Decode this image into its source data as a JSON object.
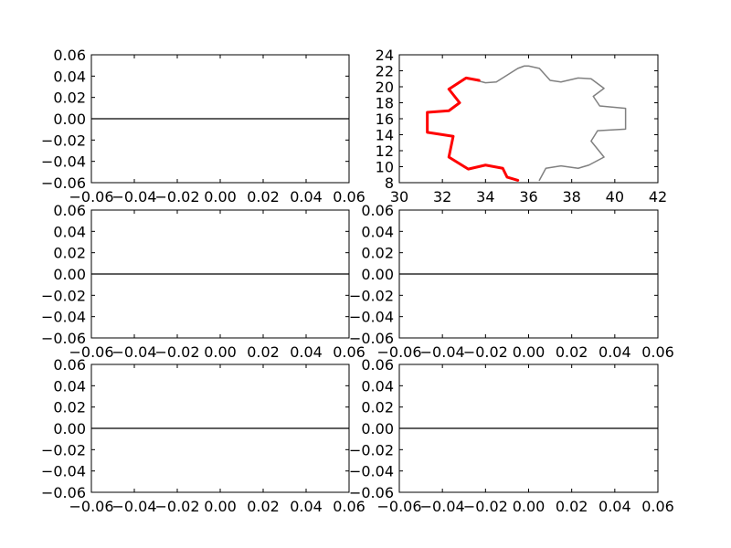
{
  "chart_data": [
    {
      "type": "line",
      "xlim": [
        -0.06,
        0.06
      ],
      "ylim": [
        -0.06,
        0.06
      ],
      "xticks": [
        "−0.06",
        "−0.04",
        "−0.02",
        "0.00",
        "0.02",
        "0.04",
        "0.06"
      ],
      "yticks": [
        "0.06",
        "0.04",
        "0.02",
        "0.00",
        "−0.02",
        "−0.04",
        "−0.06"
      ],
      "series": [
        {
          "color": "#000000",
          "x": [
            -0.06,
            0.06
          ],
          "y": [
            0,
            0
          ]
        }
      ],
      "grid": false
    },
    {
      "type": "line",
      "xlim": [
        30,
        42
      ],
      "ylim": [
        8,
        24
      ],
      "xticks": [
        "30",
        "32",
        "34",
        "36",
        "38",
        "40",
        "42"
      ],
      "yticks": [
        "24",
        "22",
        "20",
        "18",
        "16",
        "14",
        "12",
        "10",
        "8"
      ],
      "grid": false,
      "series": [
        {
          "color": "#808080",
          "x": [
            36.5,
            36.8,
            37.5,
            38.3,
            38.8,
            39.5,
            38.9,
            39.2,
            40.5,
            40.5,
            39.3,
            39.0,
            39.5,
            38.9,
            38.3,
            37.5,
            37.0,
            36.5,
            36.0,
            35.8,
            35.5,
            34.5,
            34.0,
            33.3
          ],
          "y": [
            8.3,
            9.8,
            10.1,
            9.8,
            10.2,
            11.2,
            13.2,
            14.5,
            14.7,
            17.3,
            17.6,
            18.8,
            19.8,
            21.0,
            21.1,
            20.6,
            20.8,
            22.3,
            22.6,
            22.6,
            22.3,
            20.6,
            20.5,
            21.0
          ]
        },
        {
          "color": "#ff0000",
          "x": [
            33.7,
            33.1,
            32.3,
            32.8,
            32.3,
            31.3,
            31.3,
            32.5,
            32.3,
            33.2,
            34.0,
            34.8,
            35.0,
            35.5
          ],
          "y": [
            20.8,
            21.1,
            19.7,
            18.0,
            17.0,
            16.8,
            14.3,
            13.8,
            11.2,
            9.7,
            10.2,
            9.8,
            8.7,
            8.3
          ]
        }
      ]
    },
    {
      "type": "line",
      "xlim": [
        -0.06,
        0.06
      ],
      "ylim": [
        -0.06,
        0.06
      ],
      "xticks": [
        "−0.06",
        "−0.04",
        "−0.02",
        "0.00",
        "0.02",
        "0.04",
        "0.06"
      ],
      "yticks": [
        "0.06",
        "0.04",
        "0.02",
        "0.00",
        "−0.02",
        "−0.04",
        "−0.06"
      ],
      "series": [
        {
          "color": "#000000",
          "x": [
            -0.06,
            0.06
          ],
          "y": [
            0,
            0
          ]
        }
      ],
      "grid": false
    },
    {
      "type": "line",
      "xlim": [
        -0.06,
        0.06
      ],
      "ylim": [
        -0.06,
        0.06
      ],
      "xticks": [
        "−0.06",
        "−0.04",
        "−0.02",
        "0.00",
        "0.02",
        "0.04",
        "0.06"
      ],
      "yticks": [
        "0.06",
        "0.04",
        "0.02",
        "0.00",
        "−0.02",
        "−0.04",
        "−0.06"
      ],
      "series": [
        {
          "color": "#000000",
          "x": [
            -0.06,
            0.06
          ],
          "y": [
            0,
            0
          ]
        }
      ],
      "grid": false
    },
    {
      "type": "line",
      "xlim": [
        -0.06,
        0.06
      ],
      "ylim": [
        -0.06,
        0.06
      ],
      "xticks": [
        "−0.06",
        "−0.04",
        "−0.02",
        "0.00",
        "0.02",
        "0.04",
        "0.06"
      ],
      "yticks": [
        "0.06",
        "0.04",
        "0.02",
        "0.00",
        "−0.02",
        "−0.04",
        "−0.06"
      ],
      "series": [
        {
          "color": "#000000",
          "x": [
            -0.06,
            0.06
          ],
          "y": [
            0,
            0
          ]
        }
      ],
      "grid": false
    },
    {
      "type": "line",
      "xlim": [
        -0.06,
        0.06
      ],
      "ylim": [
        -0.06,
        0.06
      ],
      "xticks": [
        "−0.06",
        "−0.04",
        "−0.02",
        "0.00",
        "0.02",
        "0.04",
        "0.06"
      ],
      "yticks": [
        "0.06",
        "0.04",
        "0.02",
        "0.00",
        "−0.02",
        "−0.04",
        "−0.06"
      ],
      "series": [
        {
          "color": "#000000",
          "x": [
            -0.06,
            0.06
          ],
          "y": [
            0,
            0
          ]
        }
      ],
      "grid": false
    }
  ]
}
